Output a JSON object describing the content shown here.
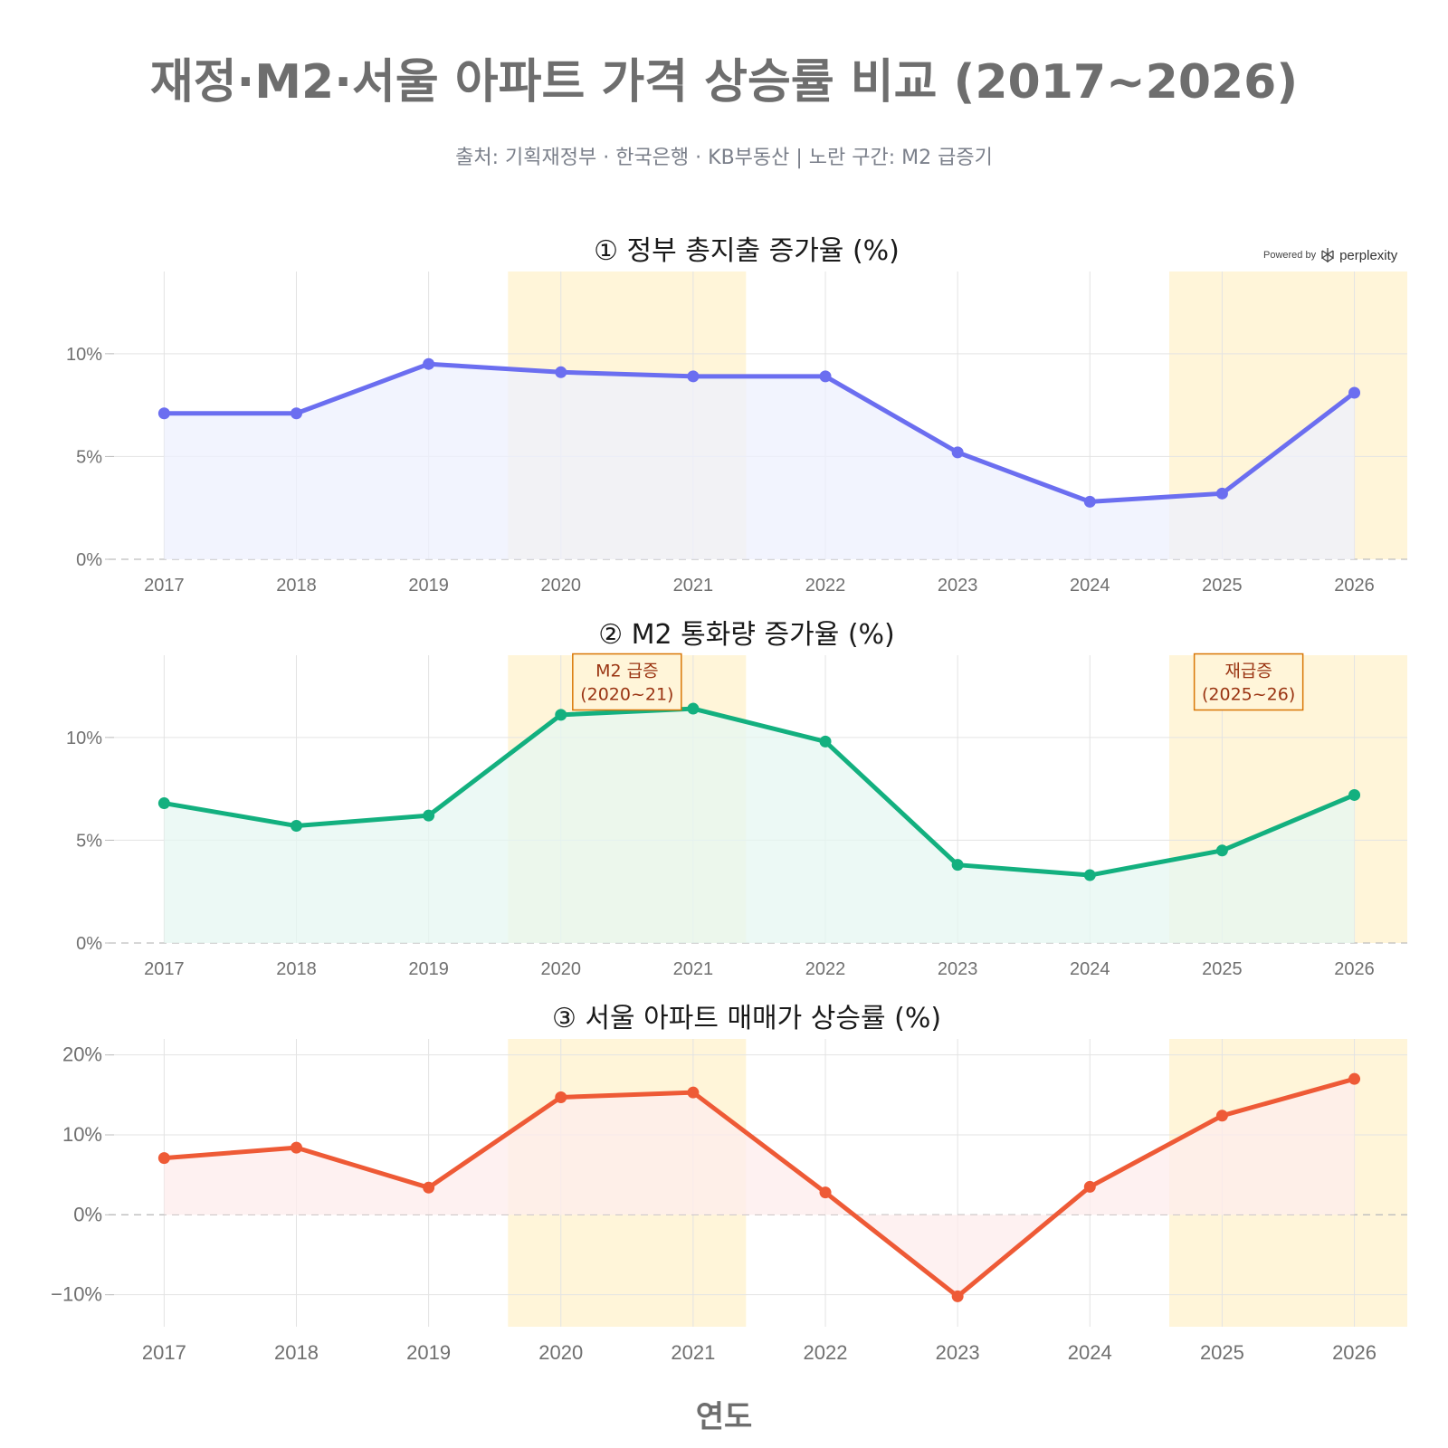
{
  "title": "재정·M2·서울 아파트 가격 상승률 비교 (2017~2026)",
  "subtitle": "출처: 기획재정부 · 한국은행 · KB부동산  |  노란 구간: M2 급증기",
  "xlabel": "연도",
  "watermark": {
    "prefix": "Powered by",
    "brand": "perplexity",
    "icon": "perplexity-logo-icon"
  },
  "highlight_color": "#fff5d9",
  "chart_data": [
    {
      "type": "area",
      "title": "① 정부 총지출 증가율 (%)",
      "x": [
        2017,
        2018,
        2019,
        2020,
        2021,
        2022,
        2023,
        2024,
        2025,
        2026
      ],
      "series": [
        {
          "values": [
            7.1,
            7.1,
            9.5,
            9.1,
            8.9,
            8.9,
            5.2,
            2.8,
            3.2,
            8.1
          ]
        }
      ],
      "ylim": [
        0,
        14
      ],
      "yticks": [
        0,
        5,
        10
      ],
      "ytick_labels": [
        "0%",
        "5%",
        "10%"
      ],
      "color": "#6b6ef0",
      "fill": "#eef0fe",
      "highlights": [
        [
          2019.6,
          2021.4
        ],
        [
          2024.6,
          2026.4
        ]
      ],
      "grid": true,
      "annotations": []
    },
    {
      "type": "area",
      "title": "② M2 통화량 증가율 (%)",
      "x": [
        2017,
        2018,
        2019,
        2020,
        2021,
        2022,
        2023,
        2024,
        2025,
        2026
      ],
      "series": [
        {
          "values": [
            6.8,
            5.7,
            6.2,
            11.1,
            11.4,
            9.8,
            3.8,
            3.3,
            4.5,
            7.2
          ]
        }
      ],
      "ylim": [
        0,
        14
      ],
      "yticks": [
        0,
        5,
        10
      ],
      "ytick_labels": [
        "0%",
        "5%",
        "10%"
      ],
      "color": "#13b07f",
      "fill": "#e6f7f1",
      "highlights": [
        [
          2019.6,
          2021.4
        ],
        [
          2024.6,
          2026.4
        ]
      ],
      "grid": true,
      "annotations": [
        {
          "lines": [
            "M2 급증",
            "(2020~21)"
          ],
          "x": 2020.5,
          "y": 12.7
        },
        {
          "lines": [
            "재급증",
            "(2025~26)"
          ],
          "x": 2025.2,
          "y": 12.7
        }
      ]
    },
    {
      "type": "area",
      "title": "③ 서울 아파트 매매가 상승률 (%)",
      "x": [
        2017,
        2018,
        2019,
        2020,
        2021,
        2022,
        2023,
        2024,
        2025,
        2026
      ],
      "series": [
        {
          "values": [
            7.1,
            8.4,
            3.4,
            14.7,
            15.3,
            2.8,
            -10.2,
            3.5,
            12.4,
            17.0
          ]
        }
      ],
      "ylim": [
        -14,
        22
      ],
      "yticks": [
        -10,
        0,
        10,
        20
      ],
      "ytick_labels": [
        "−10%",
        "0%",
        "10%",
        "20%"
      ],
      "color": "#ee5a36",
      "fill": "#fdecec",
      "highlights": [
        [
          2019.6,
          2021.4
        ],
        [
          2024.6,
          2026.4
        ]
      ],
      "grid": true,
      "annotations": []
    }
  ]
}
